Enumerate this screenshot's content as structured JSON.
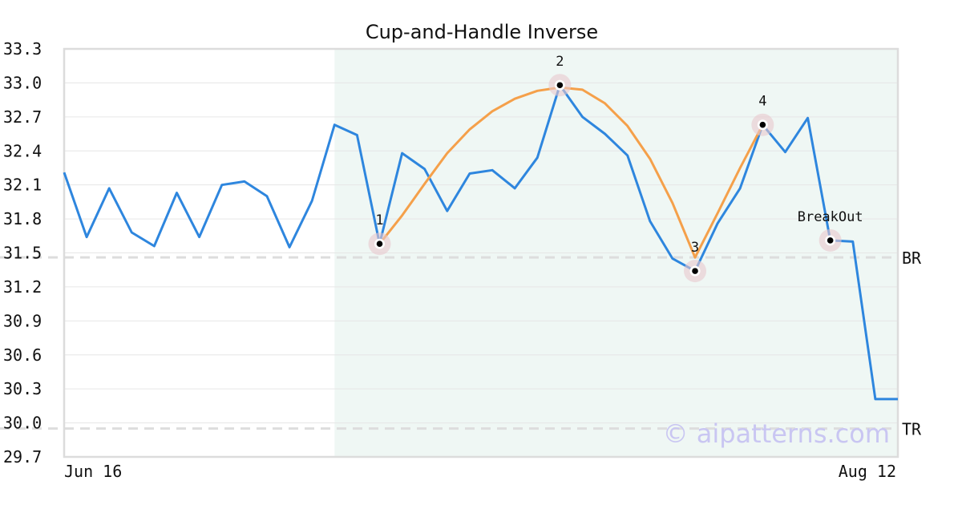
{
  "chart_data": {
    "type": "line",
    "title": "Cup-and-Handle Inverse",
    "xlabel": "",
    "ylabel": "",
    "ylim": [
      29.7,
      33.3
    ],
    "yticks": [
      "29.7",
      "30.0",
      "30.3",
      "30.6",
      "30.9",
      "31.2",
      "31.5",
      "31.8",
      "32.1",
      "32.4",
      "32.7",
      "33.0",
      "33.3"
    ],
    "xtick_labels": {
      "start": "Jun 16",
      "end": "Aug 12"
    },
    "grid": true,
    "series": [
      {
        "color": "#2e86de",
        "values": [
          32.21,
          31.64,
          32.07,
          31.68,
          31.56,
          32.03,
          31.64,
          32.1,
          32.13,
          32.0,
          31.55,
          31.96,
          32.63,
          32.54,
          31.58,
          32.38,
          32.24,
          31.87,
          32.2,
          32.23,
          32.07,
          32.34,
          32.98,
          32.7,
          32.55,
          32.36,
          31.78,
          31.45,
          31.34,
          31.76,
          32.07,
          32.63,
          32.39,
          32.69,
          31.61,
          31.6,
          30.21,
          30.21
        ]
      },
      {
        "color": "#f5a04a",
        "x": [
          14,
          15,
          16,
          17,
          18,
          19,
          20,
          21,
          22,
          23,
          24,
          25,
          26,
          27,
          28,
          29,
          30,
          31
        ],
        "values": [
          31.58,
          31.83,
          32.11,
          32.38,
          32.59,
          32.75,
          32.86,
          32.93,
          32.96,
          32.94,
          32.82,
          32.62,
          32.33,
          31.94,
          31.46,
          31.85,
          32.25,
          32.63
        ]
      }
    ],
    "highlight_region": {
      "start_index": 12,
      "end_index": 37,
      "color": "#eff7f4"
    },
    "points": [
      {
        "label": "1",
        "index": 14,
        "value": 31.58
      },
      {
        "label": "2",
        "index": 22,
        "value": 32.98
      },
      {
        "label": "3",
        "index": 28,
        "value": 31.34
      },
      {
        "label": "4",
        "index": 31,
        "value": 32.63
      },
      {
        "label": "BreakOut",
        "index": 34,
        "value": 31.61
      }
    ],
    "reference_lines": [
      {
        "label": "BR",
        "value": 31.46
      },
      {
        "label": "TR",
        "value": 29.95
      }
    ],
    "watermark": "© aipatterns.com"
  }
}
